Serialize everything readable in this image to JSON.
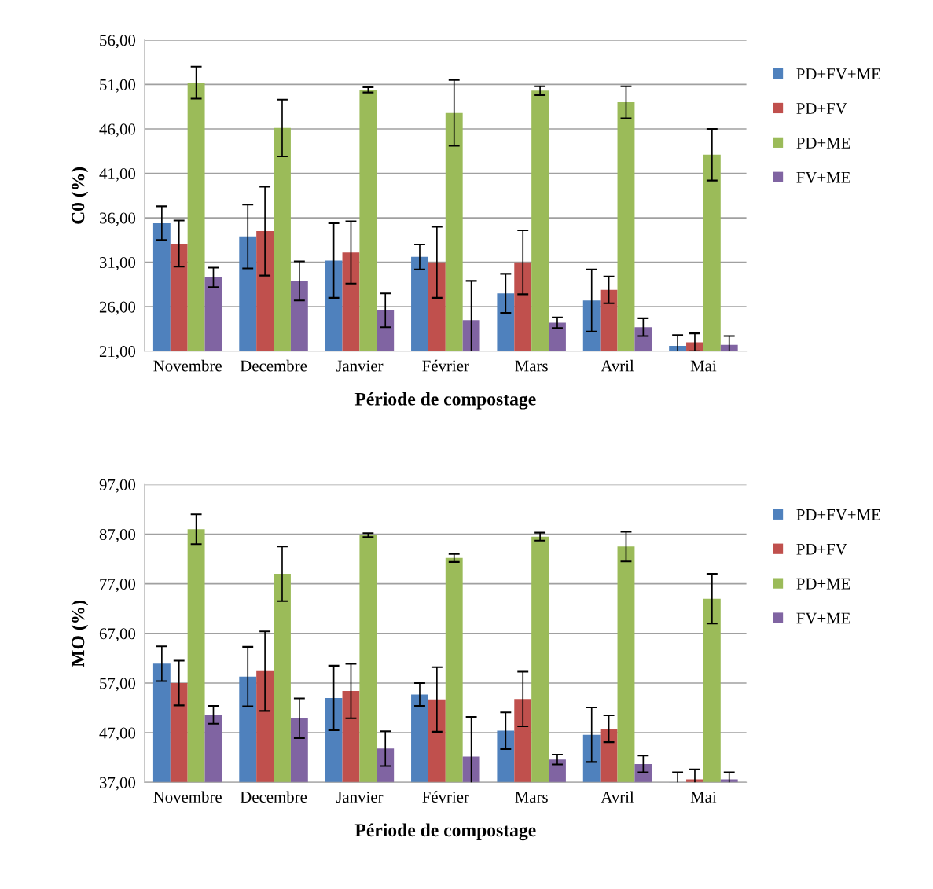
{
  "chart_data": [
    {
      "type": "bar",
      "xlabel": "Période de compostage",
      "ylabel": "C0 (%)",
      "categories": [
        "Novembre",
        "Decembre",
        "Janvier",
        "Février",
        "Mars",
        "Avril",
        "Mai"
      ],
      "series": [
        {
          "name": "PD+FV+ME",
          "color": "#4f81bd",
          "values": [
            35.4,
            33.9,
            31.2,
            31.6,
            27.5,
            26.7,
            21.6
          ],
          "errors": [
            1.9,
            3.6,
            4.2,
            1.4,
            2.2,
            3.5,
            1.2
          ]
        },
        {
          "name": "PD+FV",
          "color": "#c0504d",
          "values": [
            33.1,
            34.5,
            32.1,
            31.0,
            31.0,
            27.9,
            22.0
          ],
          "errors": [
            2.6,
            5.0,
            3.5,
            4.0,
            3.6,
            1.5,
            1.0
          ]
        },
        {
          "name": "PD+ME",
          "color": "#9bbb59",
          "values": [
            51.2,
            46.1,
            50.4,
            47.8,
            50.3,
            49.0,
            43.1
          ],
          "errors": [
            1.8,
            3.2,
            0.3,
            3.7,
            0.5,
            1.8,
            2.9
          ]
        },
        {
          "name": "FV+ME",
          "color": "#8064a2",
          "values": [
            29.3,
            28.9,
            25.6,
            24.5,
            24.2,
            23.7,
            21.7
          ],
          "errors": [
            1.1,
            2.2,
            1.9,
            4.4,
            0.6,
            1.0,
            1.0
          ]
        }
      ],
      "ylim": [
        21,
        56
      ],
      "yticks": [
        {
          "value": 21,
          "label": "21,00"
        },
        {
          "value": 26,
          "label": "26,00"
        },
        {
          "value": 31,
          "label": "31,00"
        },
        {
          "value": 36,
          "label": "36,00"
        },
        {
          "value": 41,
          "label": "41,00"
        },
        {
          "value": 46,
          "label": "46,00"
        },
        {
          "value": 51,
          "label": "51,00"
        },
        {
          "value": 56,
          "label": "56,00"
        }
      ],
      "grid": "y",
      "legend": "right"
    },
    {
      "type": "bar",
      "xlabel": "Période de compostage",
      "ylabel": "MO (%)",
      "categories": [
        "Novembre",
        "Decembre",
        "Janvier",
        "Février",
        "Mars",
        "Avril",
        "Mai"
      ],
      "series": [
        {
          "name": "PD+FV+ME",
          "color": "#4f81bd",
          "values": [
            60.9,
            58.3,
            54.0,
            54.7,
            47.4,
            46.6,
            37.0
          ],
          "errors": [
            3.5,
            6.0,
            6.5,
            2.3,
            3.7,
            5.5,
            2.0
          ]
        },
        {
          "name": "PD+FV",
          "color": "#c0504d",
          "values": [
            57.0,
            59.4,
            55.4,
            53.7,
            53.8,
            47.8,
            37.6
          ],
          "errors": [
            4.5,
            8.0,
            5.5,
            6.5,
            5.5,
            2.7,
            2.0
          ]
        },
        {
          "name": "PD+ME",
          "color": "#9bbb59",
          "values": [
            88.0,
            79.0,
            86.8,
            82.2,
            86.5,
            84.5,
            74.0
          ],
          "errors": [
            3.0,
            5.5,
            0.4,
            0.8,
            0.8,
            3.0,
            5.0
          ]
        },
        {
          "name": "FV+ME",
          "color": "#8064a2",
          "values": [
            50.6,
            49.9,
            43.8,
            42.2,
            41.6,
            40.7,
            37.6
          ],
          "errors": [
            1.8,
            4.0,
            3.5,
            8.0,
            1.0,
            1.7,
            1.4
          ]
        }
      ],
      "ylim": [
        37,
        97
      ],
      "yticks": [
        {
          "value": 37,
          "label": "37,00"
        },
        {
          "value": 47,
          "label": "47,00"
        },
        {
          "value": 57,
          "label": "57,00"
        },
        {
          "value": 67,
          "label": "67,00"
        },
        {
          "value": 77,
          "label": "77,00"
        },
        {
          "value": 87,
          "label": "87,00"
        },
        {
          "value": 97,
          "label": "97,00"
        }
      ],
      "grid": "y",
      "legend": "right"
    }
  ]
}
